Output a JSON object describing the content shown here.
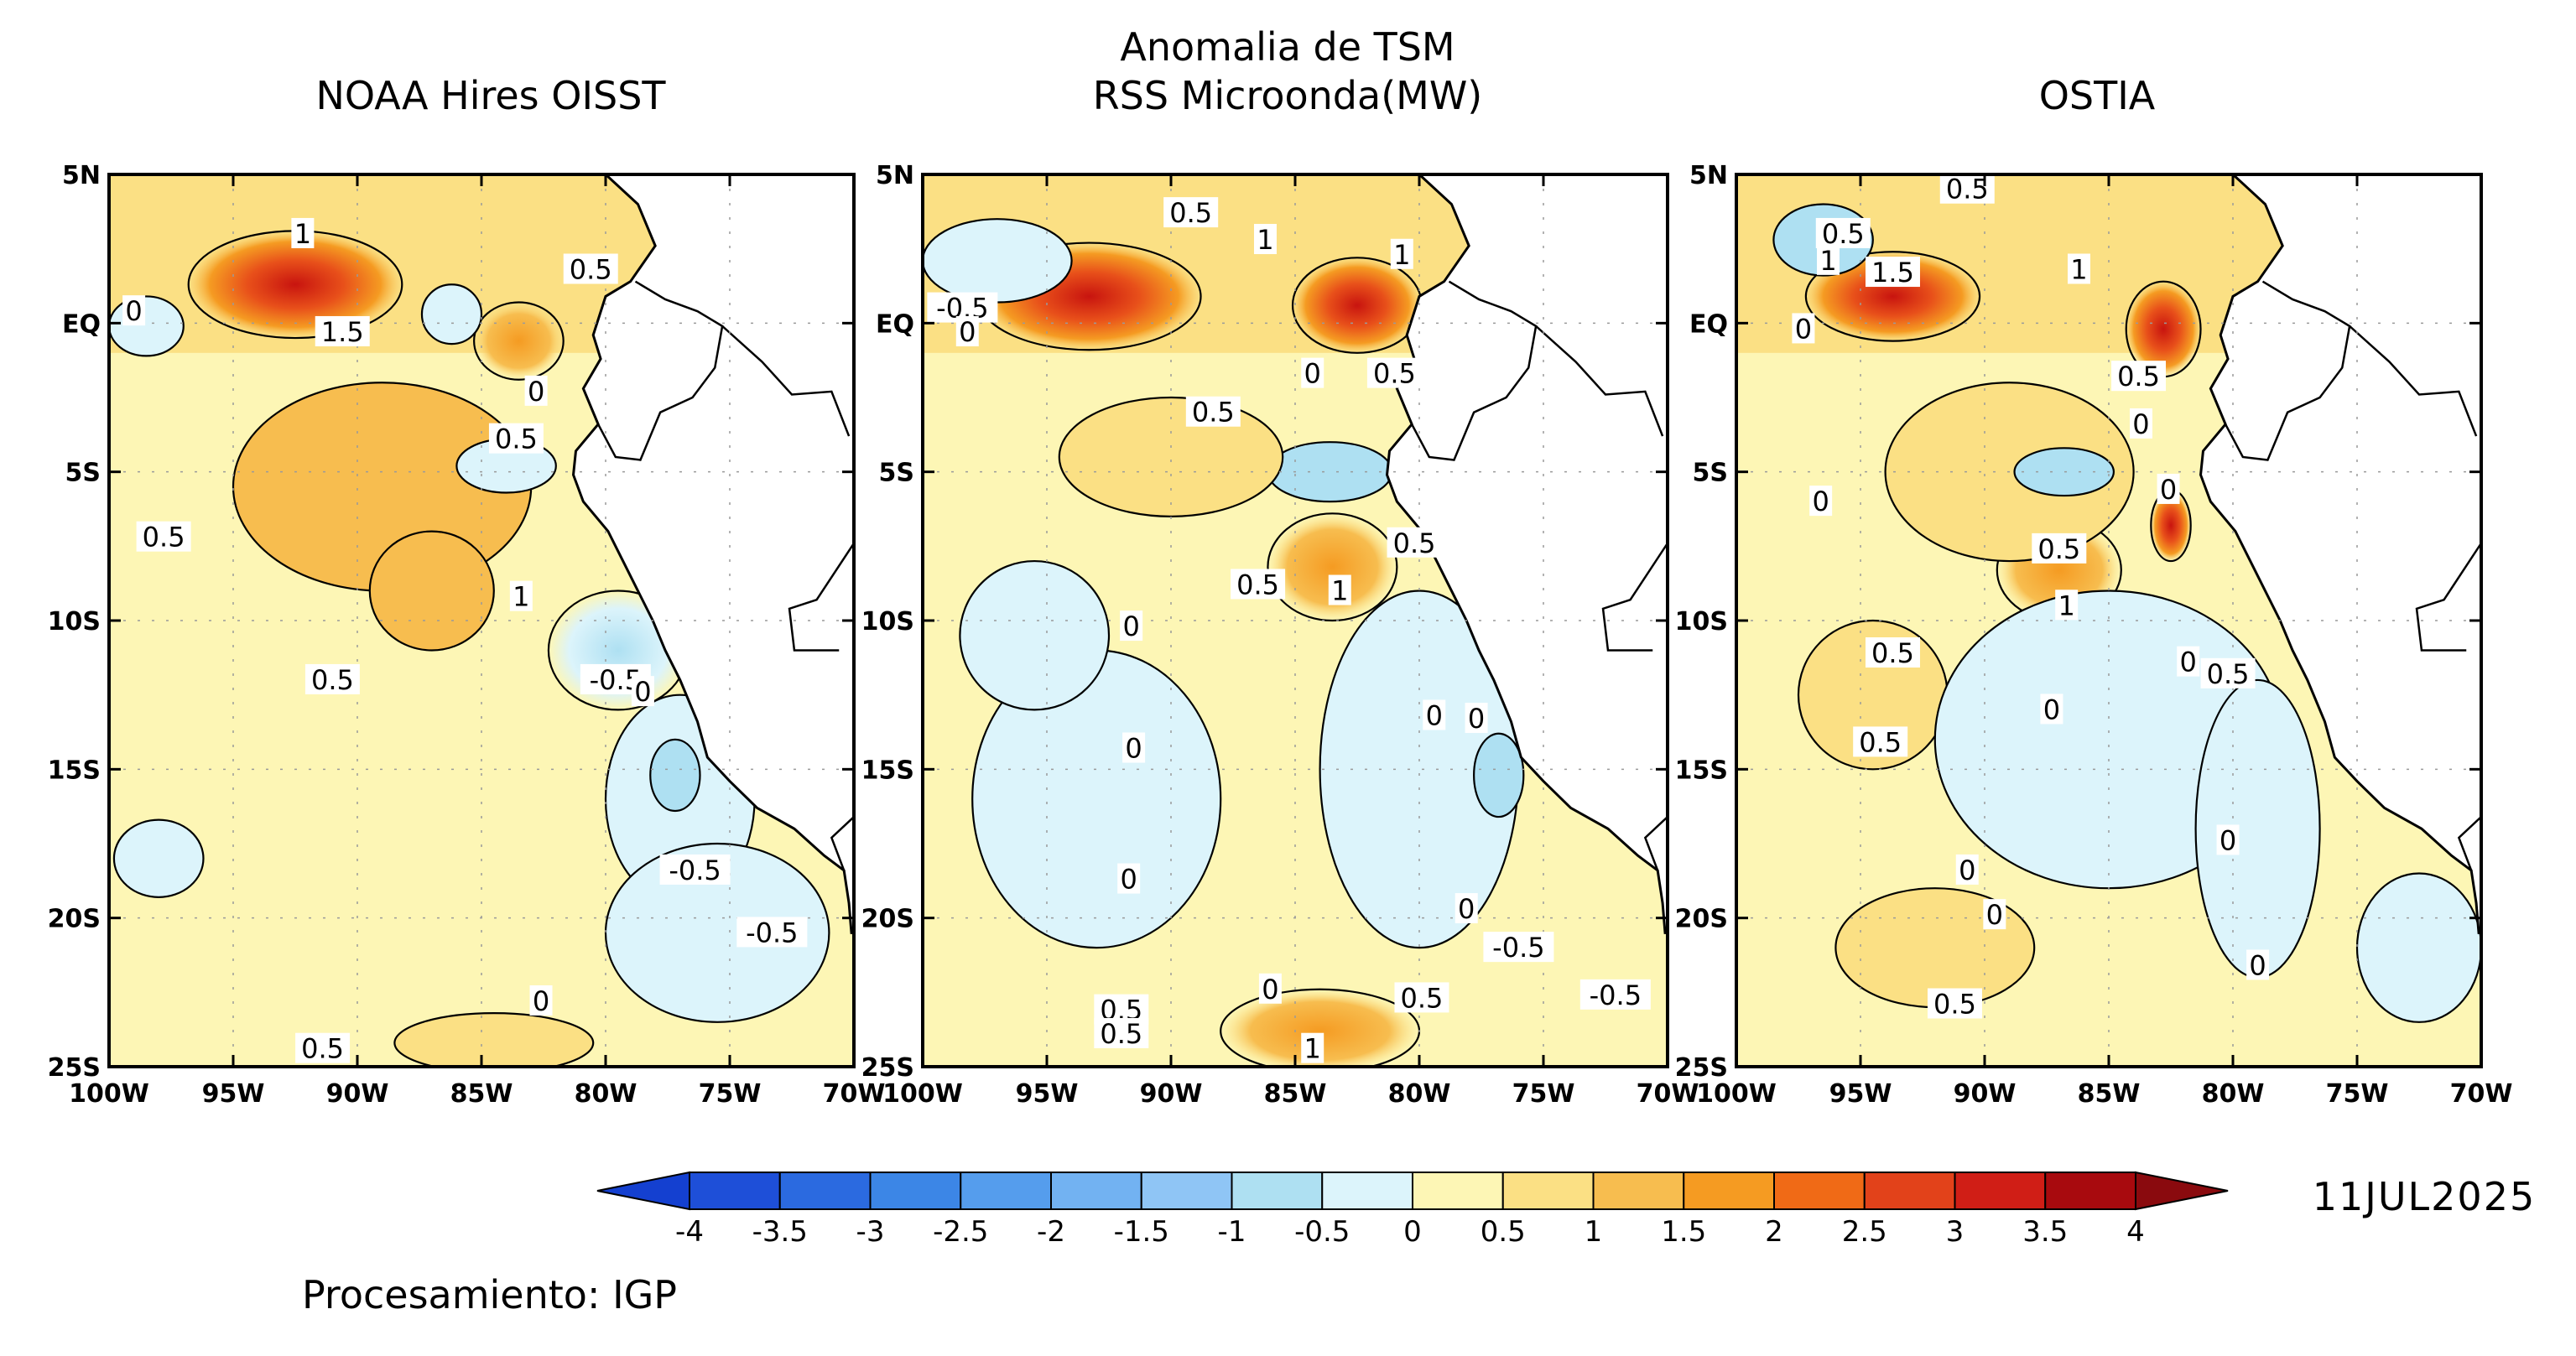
{
  "chart_data": {
    "type": "heatmap",
    "title": "Anomalia de TSM",
    "date": "11JUL2025",
    "credit": "Procesamiento: IGP",
    "x_ticks": [
      "100W",
      "95W",
      "90W",
      "85W",
      "80W",
      "75W",
      "70W"
    ],
    "y_ticks": [
      "5N",
      "EQ",
      "5S",
      "10S",
      "15S",
      "20S",
      "25S"
    ],
    "xlim": [
      -100,
      -70
    ],
    "ylim": [
      -25,
      5
    ],
    "colorbar": {
      "labels": [
        "-4",
        "-3.5",
        "-3",
        "-2.5",
        "-2",
        "-1.5",
        "-1",
        "-0.5",
        "0",
        "0.5",
        "1",
        "1.5",
        "2",
        "2.5",
        "3",
        "3.5",
        "4"
      ],
      "colors": [
        "#1e4fd8",
        "#2b6ae0",
        "#3c86e6",
        "#559ded",
        "#72b2f2",
        "#8fc5f5",
        "#aee0f2",
        "#dcf4fb",
        "#fdf6b5",
        "#fbe084",
        "#f7bd4f",
        "#f59b22",
        "#f06a16",
        "#e2421a",
        "#d01e16",
        "#a80a0e"
      ]
    },
    "panels": [
      {
        "title_lines": [
          "NOAA Hires OISST"
        ],
        "contour_labels": [
          {
            "text": "1",
            "lon": -92.2,
            "lat": 3.0
          },
          {
            "text": "0.5",
            "lon": -80.6,
            "lat": 1.8
          },
          {
            "text": "0",
            "lon": -99.0,
            "lat": 0.4
          },
          {
            "text": "1.5",
            "lon": -90.6,
            "lat": -0.3
          },
          {
            "text": "0",
            "lon": -82.8,
            "lat": -2.3
          },
          {
            "text": "0.5",
            "lon": -83.6,
            "lat": -3.9
          },
          {
            "text": "0.5",
            "lon": -97.8,
            "lat": -7.2
          },
          {
            "text": "1",
            "lon": -83.4,
            "lat": -9.2
          },
          {
            "text": "0.5",
            "lon": -91.0,
            "lat": -12.0
          },
          {
            "text": "-0.5",
            "lon": -79.6,
            "lat": -12.0
          },
          {
            "text": "0",
            "lon": -78.5,
            "lat": -12.4
          },
          {
            "text": "-0.5",
            "lon": -76.4,
            "lat": -18.4
          },
          {
            "text": "-0.5",
            "lon": -73.3,
            "lat": -20.5
          },
          {
            "text": "0",
            "lon": -82.6,
            "lat": -22.8
          },
          {
            "text": "0.5",
            "lon": -91.4,
            "lat": -24.4
          }
        ]
      },
      {
        "title_lines": [
          "Anomalia de TSM",
          "RSS Microonda(MW)"
        ],
        "contour_labels": [
          {
            "text": "0.5",
            "lon": -89.2,
            "lat": 3.7
          },
          {
            "text": "1",
            "lon": -86.2,
            "lat": 2.8
          },
          {
            "text": "1",
            "lon": -80.7,
            "lat": 2.3
          },
          {
            "text": "-0.5",
            "lon": -98.4,
            "lat": 0.5
          },
          {
            "text": "0",
            "lon": -98.2,
            "lat": -0.3
          },
          {
            "text": "0",
            "lon": -84.3,
            "lat": -1.7
          },
          {
            "text": "0.5",
            "lon": -81.0,
            "lat": -1.7
          },
          {
            "text": "0.5",
            "lon": -88.3,
            "lat": -3.0
          },
          {
            "text": "0.5",
            "lon": -80.2,
            "lat": -7.4
          },
          {
            "text": "0.5",
            "lon": -86.5,
            "lat": -8.8
          },
          {
            "text": "1",
            "lon": -83.2,
            "lat": -9.0
          },
          {
            "text": "0",
            "lon": -91.6,
            "lat": -10.2
          },
          {
            "text": "0",
            "lon": -79.4,
            "lat": -13.2
          },
          {
            "text": "0",
            "lon": -77.7,
            "lat": -13.3
          },
          {
            "text": "0",
            "lon": -91.5,
            "lat": -14.3
          },
          {
            "text": "0",
            "lon": -91.7,
            "lat": -18.7
          },
          {
            "text": "0",
            "lon": -78.1,
            "lat": -19.7
          },
          {
            "text": "-0.5",
            "lon": -76.0,
            "lat": -21.0
          },
          {
            "text": "0",
            "lon": -86.0,
            "lat": -22.4
          },
          {
            "text": "0.5",
            "lon": -79.9,
            "lat": -22.7
          },
          {
            "text": "-0.5",
            "lon": -72.1,
            "lat": -22.6
          },
          {
            "text": "0.5",
            "lon": -92.0,
            "lat": -23.1
          },
          {
            "text": "0.5",
            "lon": -92.0,
            "lat": -23.9
          },
          {
            "text": "1",
            "lon": -84.3,
            "lat": -24.4
          }
        ]
      },
      {
        "title_lines": [
          "OSTIA"
        ],
        "contour_labels": [
          {
            "text": "0.5",
            "lon": -90.7,
            "lat": 4.5
          },
          {
            "text": "0.5",
            "lon": -95.7,
            "lat": 3.0
          },
          {
            "text": "1",
            "lon": -96.3,
            "lat": 2.1
          },
          {
            "text": "1.5",
            "lon": -93.7,
            "lat": 1.7
          },
          {
            "text": "1",
            "lon": -86.2,
            "lat": 1.8
          },
          {
            "text": "0",
            "lon": -97.3,
            "lat": -0.2
          },
          {
            "text": "0.5",
            "lon": -83.8,
            "lat": -1.8
          },
          {
            "text": "0",
            "lon": -83.7,
            "lat": -3.4
          },
          {
            "text": "0",
            "lon": -82.6,
            "lat": -5.6
          },
          {
            "text": "0",
            "lon": -96.6,
            "lat": -6.0
          },
          {
            "text": "0.5",
            "lon": -87.0,
            "lat": -7.6
          },
          {
            "text": "1",
            "lon": -86.7,
            "lat": -9.5
          },
          {
            "text": "0.5",
            "lon": -93.7,
            "lat": -11.1
          },
          {
            "text": "0",
            "lon": -81.8,
            "lat": -11.4
          },
          {
            "text": "0.5",
            "lon": -80.2,
            "lat": -11.8
          },
          {
            "text": "0",
            "lon": -87.3,
            "lat": -13.0
          },
          {
            "text": "0.5",
            "lon": -94.2,
            "lat": -14.1
          },
          {
            "text": "0",
            "lon": -80.2,
            "lat": -17.4
          },
          {
            "text": "0",
            "lon": -90.7,
            "lat": -18.4
          },
          {
            "text": "0",
            "lon": -89.6,
            "lat": -19.9
          },
          {
            "text": "0",
            "lon": -79.0,
            "lat": -21.6
          },
          {
            "text": "0.5",
            "lon": -91.2,
            "lat": -22.9
          }
        ]
      }
    ]
  }
}
